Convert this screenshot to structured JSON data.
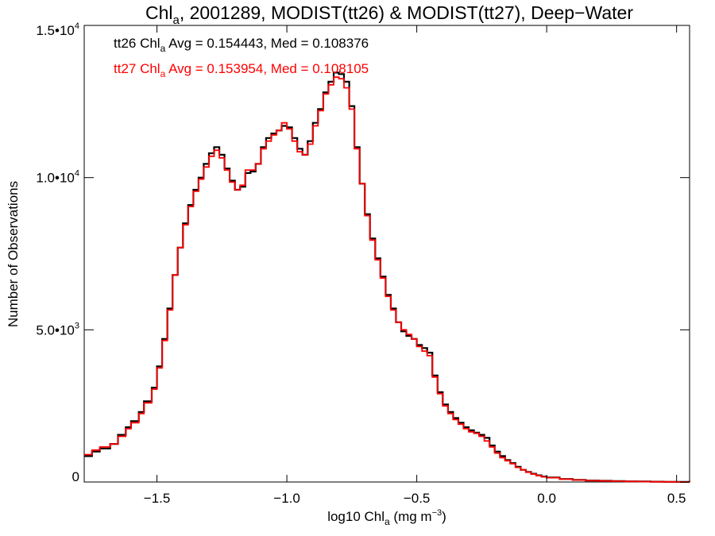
{
  "chart_data": {
    "type": "line",
    "title": {
      "part1": "Chl",
      "sub": "a",
      "part2": ", 2001289, MODIST(tt26) & MODIST(tt27), Deep−Water"
    },
    "xlabel": {
      "part1": "log10 Chl",
      "sub": "a",
      "part2": " (mg m",
      "sup": "−3",
      "part3": ")"
    },
    "ylabel": "Number of Observations",
    "xlim": [
      -1.78,
      0.55
    ],
    "ylim": [
      0,
      15000
    ],
    "xticks": [
      {
        "value": -1.5,
        "label": "−1.5"
      },
      {
        "value": -1.0,
        "label": "−1.0"
      },
      {
        "value": -0.5,
        "label": "−0.5"
      },
      {
        "value": 0.0,
        "label": "0.0"
      },
      {
        "value": 0.5,
        "label": "0.5"
      }
    ],
    "yticks": [
      {
        "value": 0,
        "base": "0",
        "exp": ""
      },
      {
        "value": 5000,
        "base": "5.0•10",
        "exp": "3"
      },
      {
        "value": 10000,
        "base": "1.0•10",
        "exp": "4"
      },
      {
        "value": 15000,
        "base": "1.5•10",
        "exp": "4"
      }
    ],
    "grid": false,
    "annotations": [
      {
        "pre": "tt26 Chl",
        "sub": "a",
        "post": " Avg = 0.154443, Med = 0.108376",
        "color": "#000000"
      },
      {
        "pre": "tt27 Chl",
        "sub": "a",
        "post": " Avg = 0.153954, Med = 0.108105",
        "color": "#ff0000"
      }
    ],
    "series": [
      {
        "color": "#000000",
        "line_style": "step",
        "x": [
          -1.78,
          -1.75,
          -1.72,
          -1.68,
          -1.65,
          -1.62,
          -1.6,
          -1.57,
          -1.55,
          -1.52,
          -1.5,
          -1.48,
          -1.46,
          -1.44,
          -1.42,
          -1.4,
          -1.38,
          -1.36,
          -1.34,
          -1.32,
          -1.3,
          -1.28,
          -1.26,
          -1.24,
          -1.22,
          -1.2,
          -1.18,
          -1.16,
          -1.14,
          -1.12,
          -1.1,
          -1.08,
          -1.06,
          -1.04,
          -1.02,
          -1.0,
          -0.98,
          -0.96,
          -0.94,
          -0.92,
          -0.9,
          -0.88,
          -0.86,
          -0.84,
          -0.82,
          -0.8,
          -0.78,
          -0.76,
          -0.74,
          -0.72,
          -0.7,
          -0.68,
          -0.66,
          -0.64,
          -0.62,
          -0.6,
          -0.58,
          -0.56,
          -0.54,
          -0.52,
          -0.5,
          -0.48,
          -0.46,
          -0.44,
          -0.42,
          -0.4,
          -0.38,
          -0.36,
          -0.34,
          -0.32,
          -0.3,
          -0.28,
          -0.26,
          -0.24,
          -0.22,
          -0.2,
          -0.18,
          -0.16,
          -0.14,
          -0.12,
          -0.1,
          -0.08,
          -0.06,
          -0.04,
          -0.02,
          0.0,
          0.05,
          0.1,
          0.15,
          0.2,
          0.25,
          0.3,
          0.35,
          0.4,
          0.45,
          0.5,
          0.55
        ],
        "y": [
          850,
          1000,
          1100,
          1250,
          1550,
          1800,
          2000,
          2300,
          2650,
          3100,
          3800,
          4700,
          5700,
          6800,
          7700,
          8500,
          9100,
          9600,
          10000,
          10450,
          10800,
          11000,
          10750,
          10300,
          9900,
          9600,
          9700,
          10150,
          10200,
          10450,
          11000,
          11300,
          11450,
          11550,
          11700,
          11650,
          11300,
          10950,
          10750,
          11200,
          11800,
          12250,
          12800,
          13150,
          13450,
          13400,
          13150,
          12350,
          11000,
          9800,
          8800,
          8000,
          7350,
          6750,
          6150,
          5700,
          5250,
          4950,
          4800,
          4700,
          4500,
          4400,
          4250,
          3500,
          2950,
          2550,
          2300,
          2100,
          1950,
          1800,
          1700,
          1620,
          1550,
          1450,
          1200,
          1000,
          850,
          720,
          620,
          500,
          400,
          330,
          270,
          220,
          180,
          150,
          100,
          70,
          50,
          40,
          30,
          22,
          15,
          10,
          6,
          3,
          0
        ]
      },
      {
        "color": "#ff0000",
        "line_style": "step",
        "x": [
          -1.78,
          -1.75,
          -1.72,
          -1.68,
          -1.65,
          -1.62,
          -1.6,
          -1.57,
          -1.55,
          -1.52,
          -1.5,
          -1.48,
          -1.46,
          -1.44,
          -1.42,
          -1.4,
          -1.38,
          -1.36,
          -1.34,
          -1.32,
          -1.3,
          -1.28,
          -1.26,
          -1.24,
          -1.22,
          -1.2,
          -1.18,
          -1.16,
          -1.14,
          -1.12,
          -1.1,
          -1.08,
          -1.06,
          -1.04,
          -1.02,
          -1.0,
          -0.98,
          -0.96,
          -0.94,
          -0.92,
          -0.9,
          -0.88,
          -0.86,
          -0.84,
          -0.82,
          -0.8,
          -0.78,
          -0.76,
          -0.74,
          -0.72,
          -0.7,
          -0.68,
          -0.66,
          -0.64,
          -0.62,
          -0.6,
          -0.58,
          -0.56,
          -0.54,
          -0.52,
          -0.5,
          -0.48,
          -0.46,
          -0.44,
          -0.42,
          -0.4,
          -0.38,
          -0.36,
          -0.34,
          -0.32,
          -0.3,
          -0.28,
          -0.26,
          -0.24,
          -0.22,
          -0.2,
          -0.18,
          -0.16,
          -0.14,
          -0.12,
          -0.1,
          -0.08,
          -0.06,
          -0.04,
          -0.02,
          0.0,
          0.05,
          0.1,
          0.15,
          0.2,
          0.25,
          0.3,
          0.35,
          0.4,
          0.45,
          0.5,
          0.55
        ],
        "y": [
          900,
          1050,
          1150,
          1250,
          1500,
          1750,
          1950,
          2250,
          2600,
          3050,
          3750,
          4650,
          5650,
          6800,
          7700,
          8450,
          9050,
          9550,
          9950,
          10350,
          10700,
          10900,
          10650,
          10250,
          9850,
          9600,
          9750,
          10250,
          10250,
          10450,
          10950,
          11200,
          11400,
          11550,
          11800,
          11600,
          11200,
          10850,
          10750,
          11100,
          11700,
          12200,
          12750,
          13050,
          13300,
          13250,
          12950,
          12250,
          10950,
          9800,
          8750,
          7950,
          7300,
          6700,
          6100,
          5650,
          5250,
          5000,
          4850,
          4700,
          4450,
          4300,
          4150,
          3450,
          2900,
          2500,
          2250,
          2050,
          1900,
          1750,
          1650,
          1600,
          1500,
          1350,
          1150,
          950,
          800,
          700,
          600,
          480,
          400,
          320,
          260,
          210,
          170,
          140,
          95,
          65,
          45,
          35,
          25,
          18,
          12,
          8,
          5,
          2,
          0
        ]
      }
    ]
  }
}
